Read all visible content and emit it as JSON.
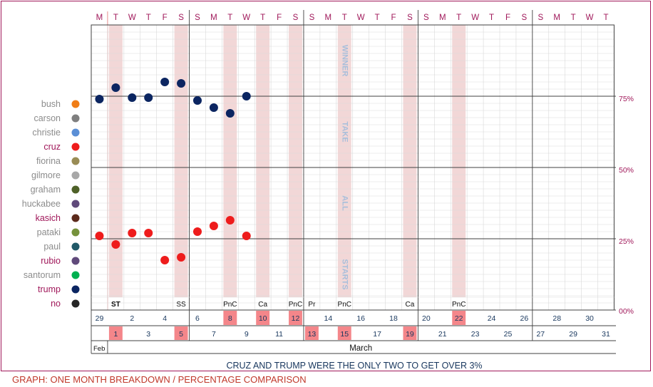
{
  "footer": "GRAPH: ONE MONTH BREAKDOWN / PERCENTAGE COMPARISON",
  "colors": {
    "frame": "#a0185a",
    "band": "#f2d7d7",
    "date_highlight": "#f4868a",
    "zone_text": "#a8bedb",
    "trump": "#0b2561",
    "cruz": "#ee1c1c"
  },
  "chart_data": {
    "type": "scatter",
    "title": "",
    "subtitle": "CRUZ AND TRUMP WERE THE ONLY TWO TO GET OVER 3%",
    "xlabel": "",
    "ylabel": "",
    "ylim": [
      0,
      100
    ],
    "y_ticks": [
      "00%",
      "25%",
      "50%",
      "75%"
    ],
    "zones": [
      "WINNER",
      "TAKE",
      "ALL",
      "STARTS"
    ],
    "weekday_letters": [
      "M",
      "T",
      "W",
      "T",
      "F",
      "S",
      "S",
      "M",
      "T",
      "W",
      "T",
      "F",
      "S",
      "S",
      "M",
      "T",
      "W",
      "T",
      "F",
      "S",
      "S",
      "M",
      "T",
      "W",
      "T",
      "F",
      "S",
      "S",
      "M",
      "T",
      "W",
      "T"
    ],
    "date_row_top": [
      "29",
      "",
      "2",
      "",
      "4",
      "",
      "6",
      "",
      "8",
      "",
      "10",
      "",
      "12",
      "",
      "14",
      "",
      "16",
      "",
      "18",
      "",
      "20",
      "",
      "22",
      "",
      "24",
      "",
      "26",
      "",
      "28",
      "",
      "30",
      ""
    ],
    "date_row_bottom": [
      "",
      "1",
      "",
      "3",
      "",
      "5",
      "",
      "7",
      "",
      "9",
      "",
      "11",
      "",
      "13",
      "",
      "15",
      "",
      "17",
      "",
      "19",
      "",
      "21",
      "",
      "23",
      "",
      "25",
      "",
      "27",
      "",
      "29",
      "",
      "31"
    ],
    "highlighted_dates": [
      "1",
      "5",
      "8",
      "10",
      "12",
      "13",
      "15",
      "19",
      "22"
    ],
    "month_labels": {
      "feb": "Feb",
      "march": "March"
    },
    "event_labels": [
      {
        "day": 1,
        "text": "ST"
      },
      {
        "day": 5,
        "text": "SS"
      },
      {
        "day": 8,
        "text": "PnC"
      },
      {
        "day": 10,
        "text": "Ca"
      },
      {
        "day": 12,
        "text": "PnC"
      },
      {
        "day": 13,
        "text": "Pr"
      },
      {
        "day": 15,
        "text": "PnC"
      },
      {
        "day": 19,
        "text": "Ca"
      },
      {
        "day": 22,
        "text": "PnC"
      }
    ],
    "legend": [
      {
        "name": "bush",
        "color": "#f07d16",
        "active": false
      },
      {
        "name": "carson",
        "color": "#7f7f7f",
        "active": false
      },
      {
        "name": "christie",
        "color": "#5b8fd6",
        "active": false
      },
      {
        "name": "cruz",
        "color": "#ee1c1c",
        "active": true
      },
      {
        "name": "fiorina",
        "color": "#998c55",
        "active": false
      },
      {
        "name": "gilmore",
        "color": "#a8a8a8",
        "active": false
      },
      {
        "name": "graham",
        "color": "#4e6128",
        "active": false
      },
      {
        "name": "huckabee",
        "color": "#604a7b",
        "active": false
      },
      {
        "name": "kasich",
        "color": "#5c2a1c",
        "active": true
      },
      {
        "name": "pataki",
        "color": "#76923c",
        "active": false
      },
      {
        "name": "paul",
        "color": "#215968",
        "active": false
      },
      {
        "name": "rubio",
        "color": "#604a7b",
        "active": true
      },
      {
        "name": "santorum",
        "color": "#00b050",
        "active": false
      },
      {
        "name": "trump",
        "color": "#0b2561",
        "active": true
      },
      {
        "name": "no",
        "color": "#262626",
        "active": true
      }
    ],
    "series": [
      {
        "name": "trump",
        "color": "#0b2561",
        "points": [
          [
            0,
            74
          ],
          [
            1,
            78
          ],
          [
            2,
            74.5
          ],
          [
            3,
            74.5
          ],
          [
            4,
            80
          ],
          [
            5,
            79.5
          ],
          [
            6,
            73.5
          ],
          [
            7,
            71
          ],
          [
            8,
            69
          ],
          [
            9,
            75
          ]
        ]
      },
      {
        "name": "cruz",
        "color": "#ee1c1c",
        "points": [
          [
            0,
            26
          ],
          [
            1,
            23
          ],
          [
            2,
            27
          ],
          [
            3,
            27
          ],
          [
            4,
            17.5
          ],
          [
            5,
            18.5
          ],
          [
            6,
            27.5
          ],
          [
            7,
            29.5
          ],
          [
            8,
            31.5
          ],
          [
            9,
            26
          ]
        ]
      }
    ]
  }
}
